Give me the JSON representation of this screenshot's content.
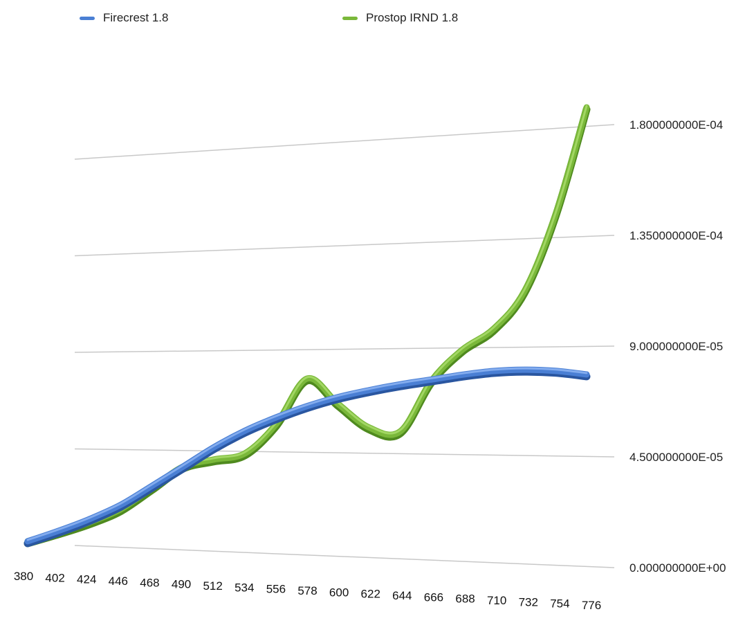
{
  "chart_data": {
    "type": "line",
    "x": [
      380,
      402,
      424,
      446,
      468,
      490,
      512,
      534,
      556,
      578,
      600,
      622,
      644,
      666,
      688,
      710,
      732,
      754,
      776
    ],
    "series": [
      {
        "name": "Firecrest 1.8",
        "color": "#4a7fd4",
        "values": [
          1e-06,
          6.5e-06,
          1.25e-05,
          1.95e-05,
          2.85e-05,
          3.75e-05,
          4.65e-05,
          5.4e-05,
          6e-05,
          6.5e-05,
          6.9e-05,
          7.2e-05,
          7.45e-05,
          7.65e-05,
          7.85e-05,
          8e-05,
          8.05e-05,
          8e-05,
          7.85e-05
        ]
      },
      {
        "name": "Prostop IRND 1.8",
        "color": "#7ab83a",
        "values": [
          1e-06,
          5.8e-06,
          1.1e-05,
          1.75e-05,
          2.75e-05,
          3.75e-05,
          4.1e-05,
          4.4e-05,
          5.7e-05,
          7.7e-05,
          6.6e-05,
          5.6e-05,
          5.45e-05,
          7.6e-05,
          8.9e-05,
          9.75e-05,
          0.000113,
          0.000144,
          0.000187
        ]
      }
    ],
    "y_tick_labels": [
      "0.000000000E+00",
      "4.500000000E-05",
      "9.000000000E-05",
      "1.350000000E-04",
      "1.800000000E-04"
    ],
    "y_ticks": [
      0,
      4.5e-05,
      9e-05,
      0.000135,
      0.00018
    ],
    "ylim": [
      0,
      0.00018
    ],
    "title": "",
    "xlabel": "",
    "ylabel": "",
    "grid": true,
    "legend_position": "top-left"
  }
}
